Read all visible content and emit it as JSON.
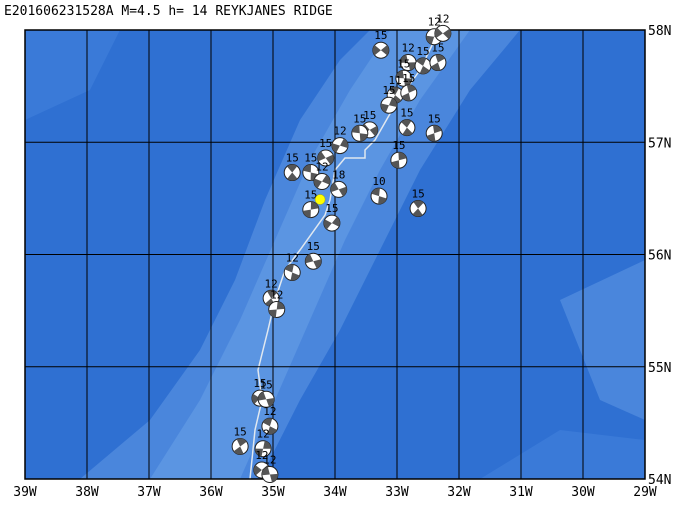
{
  "chart_data": {
    "type": "map",
    "title": "E201606231528A M=4.5 h= 14 REYKJANES RIDGE",
    "xlim": [
      -39,
      -29
    ],
    "ylim": [
      54,
      58
    ],
    "xticks": [
      {
        "value": -39,
        "label": "39W"
      },
      {
        "value": -38,
        "label": "38W"
      },
      {
        "value": -37,
        "label": "37W"
      },
      {
        "value": -36,
        "label": "36W"
      },
      {
        "value": -35,
        "label": "35W"
      },
      {
        "value": -34,
        "label": "34W"
      },
      {
        "value": -33,
        "label": "33W"
      },
      {
        "value": -32,
        "label": "32W"
      },
      {
        "value": -31,
        "label": "31W"
      },
      {
        "value": -30,
        "label": "30W"
      },
      {
        "value": -29,
        "label": "29W"
      }
    ],
    "yticks": [
      {
        "value": 54,
        "label": "54N"
      },
      {
        "value": 55,
        "label": "55N"
      },
      {
        "value": 56,
        "label": "56N"
      },
      {
        "value": 57,
        "label": "57N"
      },
      {
        "value": 58,
        "label": "58N"
      }
    ],
    "grid": true,
    "events": {
      "x": [
        -33.26,
        -32.82,
        -32.58,
        -32.34,
        -32.4,
        -32.26,
        -32.89,
        -33.03,
        -32.81,
        -33.13,
        -33.44,
        -33.6,
        -32.84,
        -32.4,
        -33.92,
        -34.15,
        -34.39,
        -34.69,
        -32.97,
        -34.21,
        -33.94,
        -33.29,
        -32.66,
        -34.39,
        -34.05,
        -34.35,
        -34.69,
        -35.03,
        -34.94,
        -35.21,
        -35.11,
        -35.05,
        -35.53,
        -35.16,
        -35.18,
        -35.05
      ],
      "y": [
        57.82,
        57.71,
        57.68,
        57.71,
        57.94,
        57.97,
        57.57,
        57.42,
        57.44,
        57.33,
        57.11,
        57.08,
        57.13,
        57.08,
        56.97,
        56.86,
        56.73,
        56.73,
        56.84,
        56.65,
        56.58,
        56.52,
        56.41,
        56.4,
        56.28,
        55.94,
        55.84,
        55.61,
        55.51,
        54.72,
        54.71,
        54.47,
        54.29,
        54.27,
        54.08,
        54.04
      ],
      "labels": [
        "15",
        "12",
        "15",
        "15",
        "12",
        "12",
        "15",
        "11",
        "15",
        "15",
        "15",
        "15",
        "15",
        "15",
        "12",
        "15",
        "15",
        "15",
        "15",
        "12",
        "18",
        "10",
        "15",
        "15",
        "15",
        "15",
        "12",
        "12",
        "12",
        "15",
        "15",
        "12",
        "15",
        "12",
        "12",
        "12"
      ]
    },
    "main_event": {
      "x": -34.24,
      "y": 56.49,
      "color": "#ffff00"
    }
  }
}
